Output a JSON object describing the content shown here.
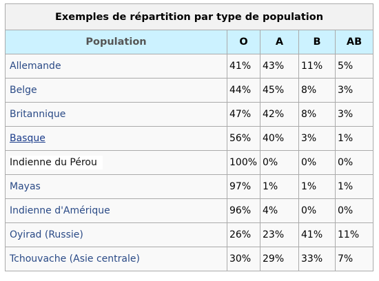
{
  "table": {
    "caption": "Exemples de répartition par type de population",
    "headers": {
      "population": "Population",
      "o": "O",
      "a": "A",
      "b": "B",
      "ab": "AB"
    },
    "rows": [
      {
        "population": "Allemande",
        "o": "41%",
        "a": "43%",
        "b": "11%",
        "ab": "5%",
        "style": "plain"
      },
      {
        "population": "Belge",
        "o": "44%",
        "a": "45%",
        "b": "8%",
        "ab": "3%",
        "style": "plain"
      },
      {
        "population": "Britannique",
        "o": "47%",
        "a": "42%",
        "b": "8%",
        "ab": "3%",
        "style": "plain"
      },
      {
        "population": "Basque",
        "o": "56%",
        "a": "40%",
        "b": "3%",
        "ab": "1%",
        "style": "link"
      },
      {
        "population": "Indienne du Pérou",
        "o": "100%",
        "a": "0%",
        "b": "0%",
        "ab": "0%",
        "style": "dark"
      },
      {
        "population": "Mayas",
        "o": "97%",
        "a": "1%",
        "b": "1%",
        "ab": "1%",
        "style": "plain"
      },
      {
        "population": "Indienne d'Amérique",
        "o": "96%",
        "a": "4%",
        "b": "0%",
        "ab": "0%",
        "style": "plain"
      },
      {
        "population": "Oyirad (Russie)",
        "o": "26%",
        "a": "23%",
        "b": "41%",
        "ab": "11%",
        "style": "plain"
      },
      {
        "population": "Tchouvache (Asie centrale)",
        "o": "30%",
        "a": "29%",
        "b": "33%",
        "ab": "7%",
        "style": "plain"
      }
    ]
  },
  "colors": {
    "header_bg": "#ccf2ff",
    "caption_bg": "#f2f2f2",
    "cell_bg": "#f9f9f9",
    "border": "#aaaaaa",
    "population_text": "#2a4a86"
  }
}
